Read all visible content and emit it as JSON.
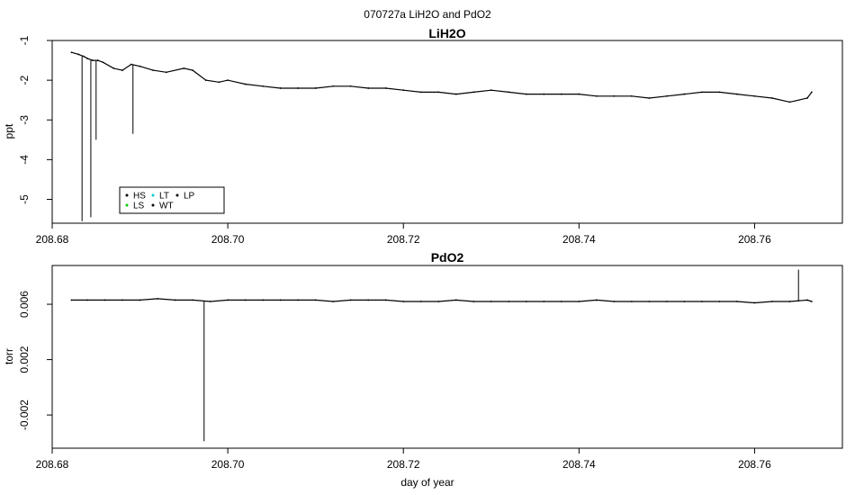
{
  "figure_title": "070727a   LiH2O and PdO2",
  "xlabel": "day of year",
  "chart_data": [
    {
      "type": "line",
      "title": "LiH2O",
      "ylabel": "ppt",
      "xlim": [
        208.68,
        208.77
      ],
      "ylim": [
        -5.6,
        -1.0
      ],
      "x_ticks": [
        "208.68",
        "208.70",
        "208.72",
        "208.74",
        "208.76"
      ],
      "y_ticks": [
        "-1",
        "-2",
        "-3",
        "-4",
        "-5"
      ],
      "x_tick_values": [
        208.68,
        208.7,
        208.72,
        208.74,
        208.76
      ],
      "y_tick_values": [
        -1,
        -2,
        -3,
        -4,
        -5
      ],
      "legend": {
        "placement": "bottom-left",
        "entries": [
          {
            "label": "HS",
            "color": "#000000"
          },
          {
            "label": "LT",
            "color": "#00cccc"
          },
          {
            "label": "LP",
            "color": "#000000"
          },
          {
            "label": "LS",
            "color": "#00cc00"
          },
          {
            "label": "WT",
            "color": "#000000"
          }
        ]
      },
      "series": [
        {
          "color": "#000000",
          "x": [
            208.6822,
            208.683,
            208.6836,
            208.684,
            208.6846,
            208.6852,
            208.6858,
            208.687,
            208.688,
            208.689,
            208.69,
            208.6915,
            208.693,
            208.695,
            208.696,
            208.6975,
            208.699,
            208.7,
            208.702,
            208.704,
            208.706,
            208.708,
            208.71,
            208.712,
            208.714,
            208.716,
            208.718,
            208.72,
            208.722,
            208.724,
            208.726,
            208.728,
            208.73,
            208.732,
            208.734,
            208.736,
            208.738,
            208.74,
            208.742,
            208.744,
            208.746,
            208.748,
            208.75,
            208.752,
            208.754,
            208.756,
            208.758,
            208.76,
            208.762,
            208.764,
            208.766,
            208.7665
          ],
          "y": [
            -1.3,
            -1.35,
            -1.4,
            -1.45,
            -1.5,
            -1.5,
            -1.55,
            -1.7,
            -1.75,
            -1.6,
            -1.65,
            -1.75,
            -1.8,
            -1.7,
            -1.75,
            -2.0,
            -2.05,
            -2.0,
            -2.1,
            -2.15,
            -2.2,
            -2.2,
            -2.2,
            -2.15,
            -2.15,
            -2.2,
            -2.2,
            -2.25,
            -2.3,
            -2.3,
            -2.35,
            -2.3,
            -2.25,
            -2.3,
            -2.35,
            -2.35,
            -2.35,
            -2.35,
            -2.4,
            -2.4,
            -2.4,
            -2.45,
            -2.4,
            -2.35,
            -2.3,
            -2.3,
            -2.35,
            -2.4,
            -2.45,
            -2.55,
            -2.45,
            -2.3
          ]
        },
        {
          "color": "#000000",
          "spikes": [
            {
              "x": 208.6834,
              "y": -5.55
            },
            {
              "x": 208.6844,
              "y": -5.45
            },
            {
              "x": 208.685,
              "y": -3.5
            },
            {
              "x": 208.6892,
              "y": -3.35
            }
          ]
        }
      ]
    },
    {
      "type": "line",
      "title": "PdO2",
      "ylabel": "torr",
      "xlim": [
        208.68,
        208.77
      ],
      "ylim": [
        -0.0044,
        0.0088
      ],
      "x_ticks": [
        "208.68",
        "208.70",
        "208.72",
        "208.74",
        "208.76"
      ],
      "y_ticks": [
        "0.006",
        "0.002",
        "-0.002"
      ],
      "x_tick_values": [
        208.68,
        208.7,
        208.72,
        208.74,
        208.76
      ],
      "y_tick_values": [
        0.006,
        0.002,
        -0.002
      ],
      "series": [
        {
          "color": "#000000",
          "x": [
            208.6822,
            208.684,
            208.686,
            208.688,
            208.69,
            208.692,
            208.694,
            208.696,
            208.698,
            208.7,
            208.702,
            208.704,
            208.706,
            208.708,
            208.71,
            208.712,
            208.714,
            208.716,
            208.718,
            208.72,
            208.722,
            208.724,
            208.726,
            208.728,
            208.73,
            208.732,
            208.734,
            208.736,
            208.738,
            208.74,
            208.742,
            208.744,
            208.746,
            208.748,
            208.75,
            208.752,
            208.754,
            208.756,
            208.758,
            208.76,
            208.762,
            208.764,
            208.766,
            208.7665
          ],
          "y": [
            0.0063,
            0.0063,
            0.0063,
            0.0063,
            0.0063,
            0.0064,
            0.0063,
            0.0063,
            0.0062,
            0.0063,
            0.0063,
            0.0063,
            0.0063,
            0.0063,
            0.0063,
            0.0062,
            0.0063,
            0.0063,
            0.0063,
            0.0062,
            0.0062,
            0.0062,
            0.0063,
            0.0062,
            0.0062,
            0.0062,
            0.0062,
            0.0062,
            0.0062,
            0.0062,
            0.0063,
            0.0062,
            0.0062,
            0.0062,
            0.0062,
            0.0062,
            0.0062,
            0.0062,
            0.0062,
            0.0061,
            0.0062,
            0.0062,
            0.0063,
            0.0062
          ]
        },
        {
          "color": "#000000",
          "spikes": [
            {
              "x": 208.6973,
              "y": -0.0039
            },
            {
              "x": 208.765,
              "y": 0.0085
            }
          ]
        }
      ]
    }
  ]
}
